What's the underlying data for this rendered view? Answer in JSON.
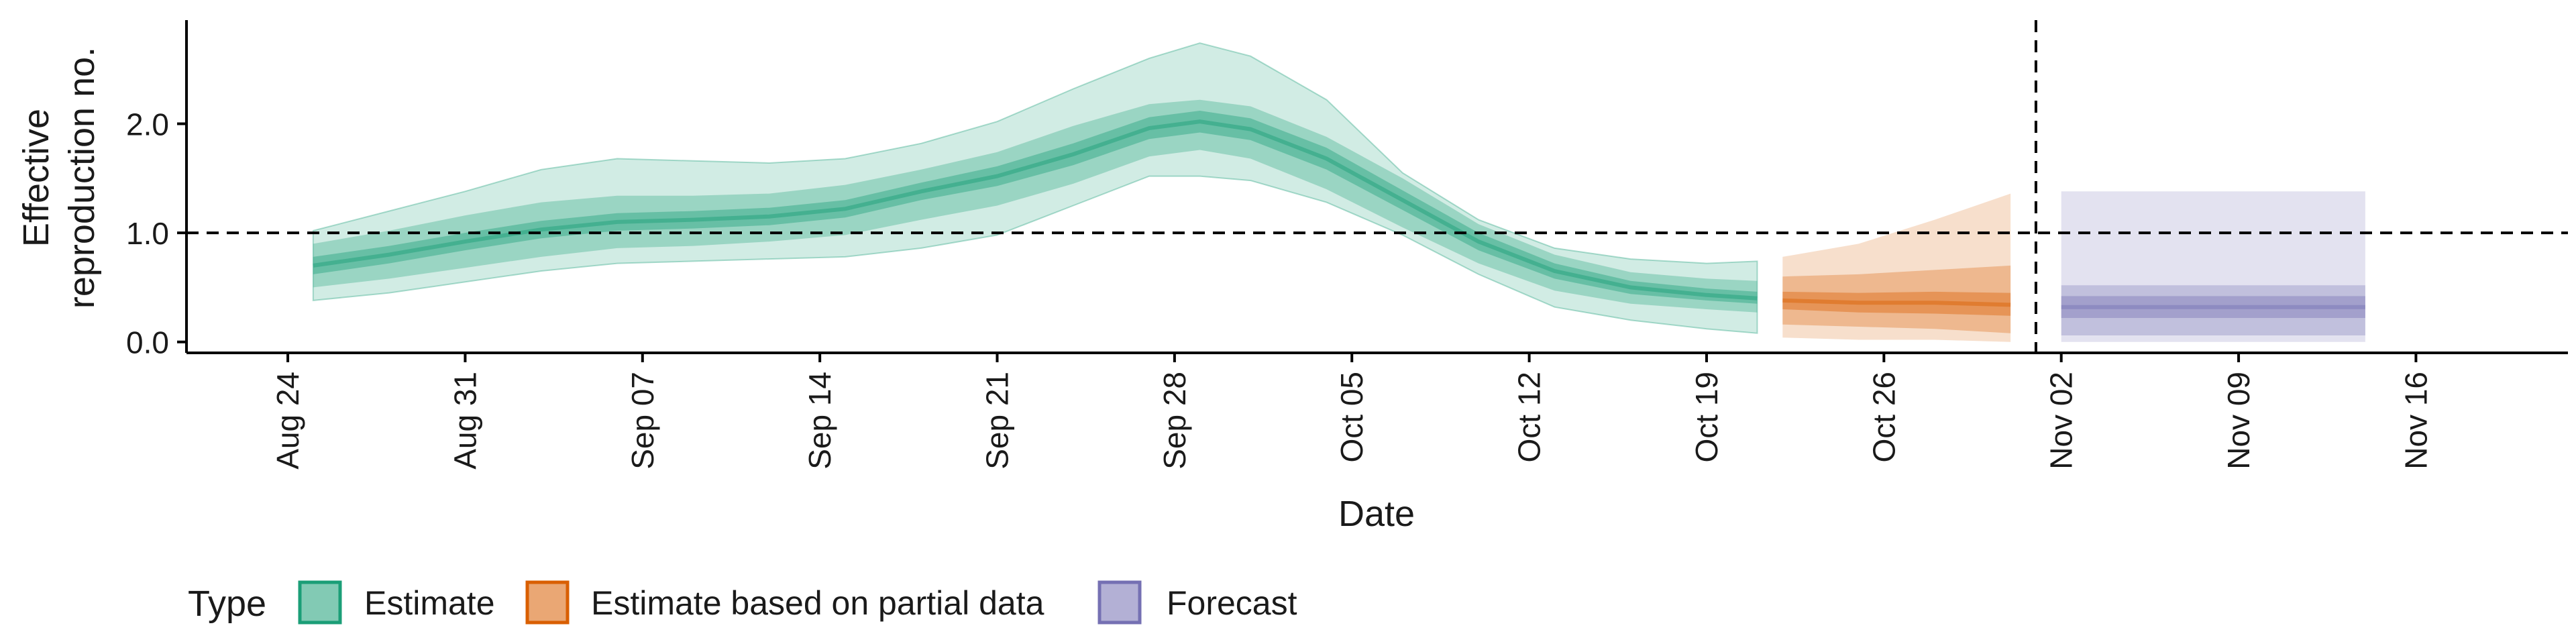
{
  "chart_data": {
    "type": "area",
    "xlabel": "Date",
    "ylabel_lines": [
      "Effective",
      "reproduction no."
    ],
    "ylim": [
      -0.1,
      2.95
    ],
    "xlim": [
      "2020-08-20",
      "2020-11-22"
    ],
    "yticks": [
      0.0,
      1.0,
      2.0
    ],
    "ytick_labels": [
      "0.0",
      "1.0",
      "2.0"
    ],
    "xticks": [
      "2020-08-24",
      "2020-08-31",
      "2020-09-07",
      "2020-09-14",
      "2020-09-21",
      "2020-09-28",
      "2020-10-05",
      "2020-10-12",
      "2020-10-19",
      "2020-10-26",
      "2020-11-02",
      "2020-11-09",
      "2020-11-16"
    ],
    "xtick_labels": [
      "Aug 24",
      "Aug 31",
      "Sep 07",
      "Sep 14",
      "Sep 21",
      "Sep 28",
      "Oct 05",
      "Oct 12",
      "Oct 19",
      "Oct 26",
      "Nov 02",
      "Nov 09",
      "Nov 16"
    ],
    "reference_line_y": 1.0,
    "reference_line_x": "2020-11-01",
    "grid": false,
    "legend": {
      "title": "Type",
      "position": "bottom-left",
      "items": [
        "Estimate",
        "Estimate based on partial data",
        "Forecast"
      ]
    },
    "colors": {
      "Estimate": "#1b9e77",
      "Estimate based on partial data": "#d95f02",
      "Forecast": "#7570b3"
    },
    "series": [
      {
        "type": "Estimate",
        "points": [
          {
            "x": "2020-08-25",
            "median": 0.7,
            "lo50": 0.62,
            "hi50": 0.78,
            "lo90": 0.5,
            "hi90": 0.9,
            "lo95": 0.38,
            "hi95": 1.02
          },
          {
            "x": "2020-08-28",
            "median": 0.8,
            "lo50": 0.72,
            "hi50": 0.88,
            "lo90": 0.58,
            "hi90": 1.02,
            "lo95": 0.45,
            "hi95": 1.2
          },
          {
            "x": "2020-08-31",
            "median": 0.92,
            "lo50": 0.84,
            "hi50": 1.0,
            "lo90": 0.68,
            "hi90": 1.16,
            "lo95": 0.55,
            "hi95": 1.38
          },
          {
            "x": "2020-09-03",
            "median": 1.03,
            "lo50": 0.95,
            "hi50": 1.11,
            "lo90": 0.78,
            "hi90": 1.28,
            "lo95": 0.65,
            "hi95": 1.58
          },
          {
            "x": "2020-09-06",
            "median": 1.1,
            "lo50": 1.02,
            "hi50": 1.18,
            "lo90": 0.86,
            "hi90": 1.34,
            "lo95": 0.72,
            "hi95": 1.68
          },
          {
            "x": "2020-09-09",
            "median": 1.12,
            "lo50": 1.04,
            "hi50": 1.2,
            "lo90": 0.88,
            "hi90": 1.34,
            "lo95": 0.74,
            "hi95": 1.66
          },
          {
            "x": "2020-09-12",
            "median": 1.15,
            "lo50": 1.07,
            "hi50": 1.23,
            "lo90": 0.92,
            "hi90": 1.36,
            "lo95": 0.76,
            "hi95": 1.64
          },
          {
            "x": "2020-09-15",
            "median": 1.22,
            "lo50": 1.14,
            "hi50": 1.3,
            "lo90": 0.98,
            "hi90": 1.44,
            "lo95": 0.78,
            "hi95": 1.68
          },
          {
            "x": "2020-09-18",
            "median": 1.38,
            "lo50": 1.3,
            "hi50": 1.46,
            "lo90": 1.12,
            "hi90": 1.58,
            "lo95": 0.86,
            "hi95": 1.82
          },
          {
            "x": "2020-09-21",
            "median": 1.52,
            "lo50": 1.43,
            "hi50": 1.61,
            "lo90": 1.25,
            "hi90": 1.74,
            "lo95": 0.98,
            "hi95": 2.02
          },
          {
            "x": "2020-09-24",
            "median": 1.72,
            "lo50": 1.62,
            "hi50": 1.82,
            "lo90": 1.45,
            "hi90": 1.98,
            "lo95": 1.25,
            "hi95": 2.32
          },
          {
            "x": "2020-09-27",
            "median": 1.96,
            "lo50": 1.86,
            "hi50": 2.06,
            "lo90": 1.7,
            "hi90": 2.18,
            "lo95": 1.52,
            "hi95": 2.6
          },
          {
            "x": "2020-09-29",
            "median": 2.02,
            "lo50": 1.92,
            "hi50": 2.12,
            "lo90": 1.76,
            "hi90": 2.22,
            "lo95": 1.52,
            "hi95": 2.74
          },
          {
            "x": "2020-10-01",
            "median": 1.95,
            "lo50": 1.85,
            "hi50": 2.05,
            "lo90": 1.68,
            "hi90": 2.16,
            "lo95": 1.48,
            "hi95": 2.62
          },
          {
            "x": "2020-10-04",
            "median": 1.68,
            "lo50": 1.58,
            "hi50": 1.78,
            "lo90": 1.4,
            "hi90": 1.88,
            "lo95": 1.28,
            "hi95": 2.22
          },
          {
            "x": "2020-10-07",
            "median": 1.3,
            "lo50": 1.21,
            "hi50": 1.39,
            "lo90": 1.05,
            "hi90": 1.5,
            "lo95": 0.98,
            "hi95": 1.55
          },
          {
            "x": "2020-10-10",
            "median": 0.92,
            "lo50": 0.84,
            "hi50": 1.0,
            "lo90": 0.72,
            "hi90": 1.08,
            "lo95": 0.62,
            "hi95": 1.12
          },
          {
            "x": "2020-10-13",
            "median": 0.65,
            "lo50": 0.58,
            "hi50": 0.72,
            "lo90": 0.47,
            "hi90": 0.8,
            "lo95": 0.32,
            "hi95": 0.86
          },
          {
            "x": "2020-10-16",
            "median": 0.5,
            "lo50": 0.44,
            "hi50": 0.56,
            "lo90": 0.35,
            "hi90": 0.64,
            "lo95": 0.2,
            "hi95": 0.76
          },
          {
            "x": "2020-10-19",
            "median": 0.43,
            "lo50": 0.38,
            "hi50": 0.49,
            "lo90": 0.3,
            "hi90": 0.58,
            "lo95": 0.12,
            "hi95": 0.72
          },
          {
            "x": "2020-10-21",
            "median": 0.4,
            "lo50": 0.35,
            "hi50": 0.46,
            "lo90": 0.27,
            "hi90": 0.56,
            "lo95": 0.08,
            "hi95": 0.74
          }
        ]
      },
      {
        "type": "Estimate based on partial data",
        "points": [
          {
            "x": "2020-10-22",
            "median": 0.38,
            "lo50": 0.3,
            "hi50": 0.46,
            "lo90": 0.16,
            "hi90": 0.6,
            "lo95": 0.04,
            "hi95": 0.78
          },
          {
            "x": "2020-10-25",
            "median": 0.36,
            "lo50": 0.27,
            "hi50": 0.45,
            "lo90": 0.14,
            "hi90": 0.62,
            "lo95": 0.02,
            "hi95": 0.9
          },
          {
            "x": "2020-10-28",
            "median": 0.36,
            "lo50": 0.26,
            "hi50": 0.46,
            "lo90": 0.12,
            "hi90": 0.66,
            "lo95": 0.02,
            "hi95": 1.12
          },
          {
            "x": "2020-10-31",
            "median": 0.34,
            "lo50": 0.24,
            "hi50": 0.45,
            "lo90": 0.08,
            "hi90": 0.7,
            "lo95": 0.0,
            "hi95": 1.36
          }
        ]
      },
      {
        "type": "Forecast",
        "points": [
          {
            "x": "2020-11-02",
            "median": 0.32,
            "lo50": 0.22,
            "hi50": 0.42,
            "lo90": 0.06,
            "hi90": 0.52,
            "lo95": 0.0,
            "hi95": 1.38
          },
          {
            "x": "2020-11-14",
            "median": 0.32,
            "lo50": 0.22,
            "hi50": 0.42,
            "lo90": 0.06,
            "hi90": 0.52,
            "lo95": 0.0,
            "hi95": 1.38
          }
        ]
      }
    ]
  }
}
